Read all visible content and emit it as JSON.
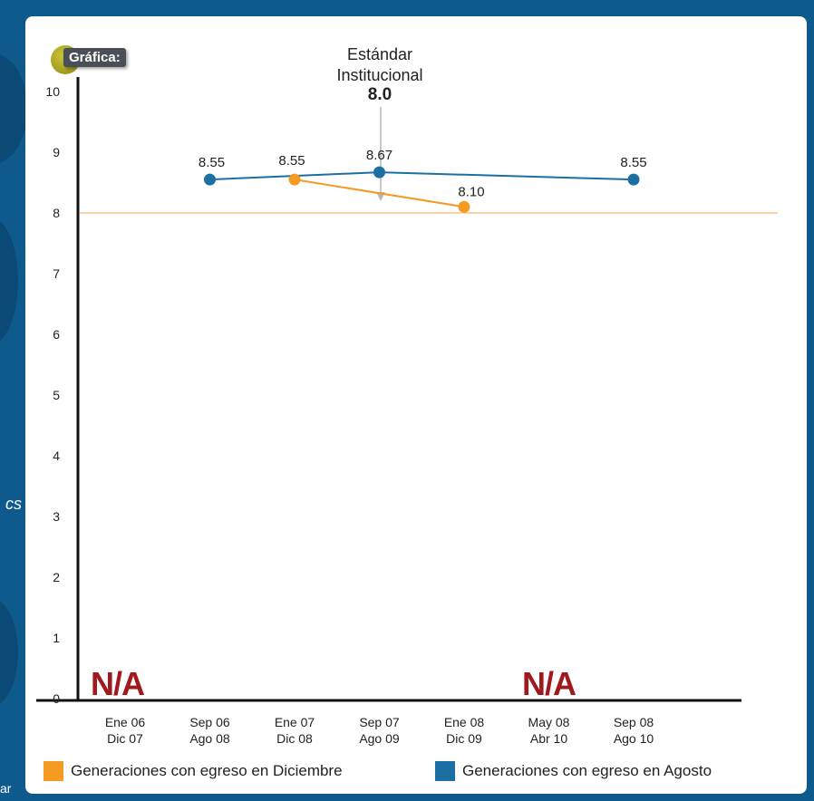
{
  "badge": {
    "label": "Gráfica:"
  },
  "side": {
    "left_text": "cs",
    "bottom_left_text": "ar"
  },
  "annotation": {
    "line1": "Estándar",
    "line2": "Institucional",
    "value": "8.0"
  },
  "na_labels": [
    "N/A",
    "N/A"
  ],
  "legend": [
    {
      "label": "Generaciones con egreso en Diciembre",
      "color": "#f59a23"
    },
    {
      "label": "Generaciones con egreso en Agosto",
      "color": "#1b6fa2"
    }
  ],
  "chart_data": {
    "type": "line",
    "categories": [
      [
        "Ene 06",
        "Dic 07"
      ],
      [
        "Sep 06",
        "Ago 08"
      ],
      [
        "Ene 07",
        "Dic 08"
      ],
      [
        "Sep 07",
        "Ago 09"
      ],
      [
        "Ene 08",
        "Dic 09"
      ],
      [
        "May 08",
        "Abr 10"
      ],
      [
        "Sep 08",
        "Ago 10"
      ]
    ],
    "y_ticks": [
      "0",
      "1",
      "2",
      "3",
      "4",
      "5",
      "6",
      "7",
      "8",
      "9",
      "10"
    ],
    "ylim": [
      0,
      10
    ],
    "reference_line": {
      "value": 8.0,
      "color": "#f6c28c"
    },
    "series": [
      {
        "name": "Generaciones con egreso en Agosto",
        "color": "#1b6fa2",
        "points": [
          {
            "category_index": 1,
            "value": 8.55,
            "label": "8.55"
          },
          {
            "category_index": 3,
            "value": 8.67,
            "label": "8.67"
          },
          {
            "category_index": 6,
            "value": 8.55,
            "label": "8.55"
          }
        ]
      },
      {
        "name": "Generaciones con egreso en Diciembre",
        "color": "#f59a23",
        "points": [
          {
            "category_index": 2,
            "value": 8.55,
            "label": "8.55"
          },
          {
            "category_index": 4,
            "value": 8.1,
            "label": "8.10"
          }
        ]
      }
    ]
  }
}
